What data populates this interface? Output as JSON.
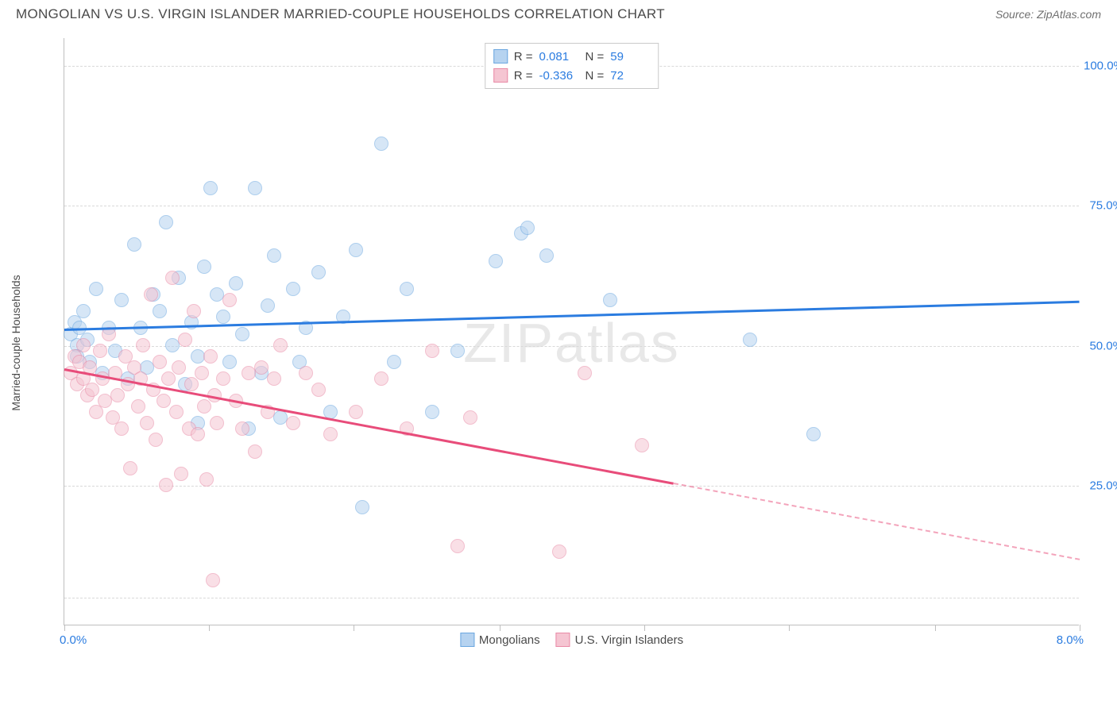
{
  "title": "MONGOLIAN VS U.S. VIRGIN ISLANDER MARRIED-COUPLE HOUSEHOLDS CORRELATION CHART",
  "source_label": "Source: ZipAtlas.com",
  "watermark_text": "ZIPatlas",
  "ylabel": "Married-couple Households",
  "chart": {
    "type": "scatter-correlation",
    "background_color": "#ffffff",
    "grid_color": "#d9d9d9",
    "axis_color": "#bfbfbf",
    "tick_label_color": "#2b7ce0",
    "text_color": "#4a4a4a",
    "title_fontsize": 17,
    "label_fontsize": 14,
    "tick_fontsize": 15,
    "marker_radius": 9,
    "marker_opacity": 0.55,
    "line_width": 3,
    "xlim": [
      0.0,
      8.0
    ],
    "ylim": [
      0.0,
      105.0
    ],
    "xtick_positions": [
      0.0,
      1.14,
      2.28,
      3.43,
      4.57,
      5.71,
      6.86,
      8.0
    ],
    "ytick_positions": [
      25.0,
      50.0,
      75.0,
      100.0
    ],
    "ytick_labels": [
      "25.0%",
      "50.0%",
      "75.0%",
      "100.0%"
    ],
    "xlim_labels": {
      "min": "0.0%",
      "max": "8.0%"
    },
    "yextra_grid": [
      5.0
    ]
  },
  "series": [
    {
      "name": "Mongolians",
      "fill_color": "#b6d3f0",
      "stroke_color": "#6ba7e0",
      "line_color": "#2b7ce0",
      "R": "0.081",
      "N": "59",
      "trend": {
        "x1": 0.0,
        "y1": 53.0,
        "x2": 8.0,
        "y2": 58.0,
        "solid_until_x": 8.0
      },
      "points": [
        [
          0.05,
          52
        ],
        [
          0.08,
          54
        ],
        [
          0.1,
          50
        ],
        [
          0.1,
          48
        ],
        [
          0.12,
          53
        ],
        [
          0.15,
          56
        ],
        [
          0.18,
          51
        ],
        [
          0.2,
          47
        ],
        [
          0.25,
          60
        ],
        [
          0.3,
          45
        ],
        [
          0.35,
          53
        ],
        [
          0.4,
          49
        ],
        [
          0.45,
          58
        ],
        [
          0.5,
          44
        ],
        [
          0.55,
          68
        ],
        [
          0.6,
          53
        ],
        [
          0.65,
          46
        ],
        [
          0.7,
          59
        ],
        [
          0.75,
          56
        ],
        [
          0.8,
          72
        ],
        [
          0.85,
          50
        ],
        [
          0.9,
          62
        ],
        [
          0.95,
          43
        ],
        [
          1.0,
          54
        ],
        [
          1.05,
          48
        ],
        [
          1.05,
          36
        ],
        [
          1.1,
          64
        ],
        [
          1.15,
          78
        ],
        [
          1.2,
          59
        ],
        [
          1.25,
          55
        ],
        [
          1.3,
          47
        ],
        [
          1.35,
          61
        ],
        [
          1.4,
          52
        ],
        [
          1.45,
          35
        ],
        [
          1.5,
          78
        ],
        [
          1.55,
          45
        ],
        [
          1.6,
          57
        ],
        [
          1.65,
          66
        ],
        [
          1.7,
          37
        ],
        [
          1.8,
          60
        ],
        [
          1.85,
          47
        ],
        [
          1.9,
          53
        ],
        [
          2.0,
          63
        ],
        [
          2.1,
          38
        ],
        [
          2.2,
          55
        ],
        [
          2.3,
          67
        ],
        [
          2.35,
          21
        ],
        [
          2.5,
          86
        ],
        [
          2.6,
          47
        ],
        [
          2.7,
          60
        ],
        [
          2.9,
          38
        ],
        [
          3.1,
          49
        ],
        [
          3.4,
          65
        ],
        [
          3.6,
          70
        ],
        [
          3.65,
          71
        ],
        [
          3.8,
          66
        ],
        [
          4.3,
          58
        ],
        [
          5.4,
          51
        ],
        [
          5.9,
          34
        ]
      ]
    },
    {
      "name": "U.S. Virgin Islanders",
      "fill_color": "#f5c5d2",
      "stroke_color": "#e98aa6",
      "line_color": "#e84c7a",
      "R": "-0.336",
      "N": "72",
      "trend": {
        "x1": 0.0,
        "y1": 46.0,
        "x2": 8.0,
        "y2": 12.0,
        "solid_until_x": 4.8
      },
      "points": [
        [
          0.05,
          45
        ],
        [
          0.08,
          48
        ],
        [
          0.1,
          43
        ],
        [
          0.12,
          47
        ],
        [
          0.15,
          50
        ],
        [
          0.15,
          44
        ],
        [
          0.18,
          41
        ],
        [
          0.2,
          46
        ],
        [
          0.22,
          42
        ],
        [
          0.25,
          38
        ],
        [
          0.28,
          49
        ],
        [
          0.3,
          44
        ],
        [
          0.32,
          40
        ],
        [
          0.35,
          52
        ],
        [
          0.38,
          37
        ],
        [
          0.4,
          45
        ],
        [
          0.42,
          41
        ],
        [
          0.45,
          35
        ],
        [
          0.48,
          48
        ],
        [
          0.5,
          43
        ],
        [
          0.52,
          28
        ],
        [
          0.55,
          46
        ],
        [
          0.58,
          39
        ],
        [
          0.6,
          44
        ],
        [
          0.62,
          50
        ],
        [
          0.65,
          36
        ],
        [
          0.68,
          59
        ],
        [
          0.7,
          42
        ],
        [
          0.72,
          33
        ],
        [
          0.75,
          47
        ],
        [
          0.78,
          40
        ],
        [
          0.8,
          25
        ],
        [
          0.82,
          44
        ],
        [
          0.85,
          62
        ],
        [
          0.88,
          38
        ],
        [
          0.9,
          46
        ],
        [
          0.92,
          27
        ],
        [
          0.95,
          51
        ],
        [
          0.98,
          35
        ],
        [
          1.0,
          43
        ],
        [
          1.02,
          56
        ],
        [
          1.05,
          34
        ],
        [
          1.08,
          45
        ],
        [
          1.1,
          39
        ],
        [
          1.12,
          26
        ],
        [
          1.15,
          48
        ],
        [
          1.18,
          41
        ],
        [
          1.17,
          8
        ],
        [
          1.2,
          36
        ],
        [
          1.25,
          44
        ],
        [
          1.3,
          58
        ],
        [
          1.35,
          40
        ],
        [
          1.4,
          35
        ],
        [
          1.45,
          45
        ],
        [
          1.5,
          31
        ],
        [
          1.55,
          46
        ],
        [
          1.6,
          38
        ],
        [
          1.65,
          44
        ],
        [
          1.7,
          50
        ],
        [
          1.8,
          36
        ],
        [
          1.9,
          45
        ],
        [
          2.0,
          42
        ],
        [
          2.1,
          34
        ],
        [
          2.3,
          38
        ],
        [
          2.5,
          44
        ],
        [
          2.7,
          35
        ],
        [
          2.9,
          49
        ],
        [
          3.1,
          14
        ],
        [
          3.2,
          37
        ],
        [
          3.9,
          13
        ],
        [
          4.1,
          45
        ],
        [
          4.55,
          32
        ]
      ]
    }
  ],
  "legend_top": {
    "r_label": "R =",
    "n_label": "N ="
  },
  "legend_bottom_labels": [
    "Mongolians",
    "U.S. Virgin Islanders"
  ]
}
